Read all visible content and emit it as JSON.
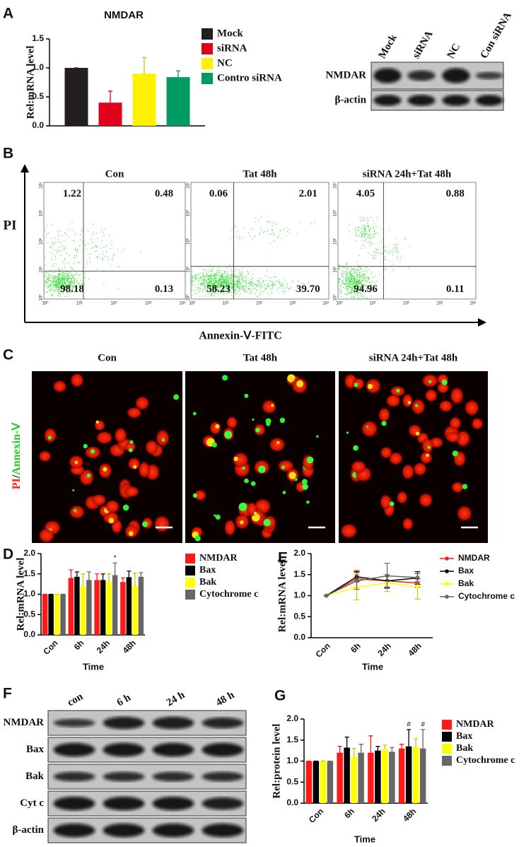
{
  "panel_labels": [
    "A",
    "B",
    "C",
    "D",
    "E",
    "F",
    "G"
  ],
  "chart_data": [
    {
      "type": "bar",
      "title": "NMDAR",
      "y_label": "Rel:mRNA level",
      "categories": [
        null
      ],
      "ylim": [
        0,
        1.5
      ],
      "yticks": [
        {
          "value": 0,
          "label": "0.0"
        },
        {
          "value": 0.5,
          "label": "0.5"
        },
        {
          "value": 1,
          "label": "1.0"
        },
        {
          "value": 1.5,
          "label": "1.5"
        }
      ],
      "series": [
        {
          "name": "Mock",
          "color": "#231f20",
          "values": [
            1.0
          ],
          "errors": [
            0
          ]
        },
        {
          "name": "siRNA",
          "color": "#e3001b",
          "values": [
            0.4
          ],
          "errors": [
            0.2
          ]
        },
        {
          "name": "NC",
          "color": "#fff200",
          "values": [
            0.9
          ],
          "errors": [
            0.28
          ]
        },
        {
          "name": "Contro siRNA",
          "color": "#009a63",
          "values": [
            0.84
          ],
          "errors": [
            0.11
          ]
        }
      ]
    },
    {
      "type": "bar",
      "y_label": "Rel:mRNA level",
      "x_label": "Time",
      "categories": [
        "Con",
        "6h",
        "24h",
        "48h"
      ],
      "ylim": [
        0,
        2
      ],
      "yticks": [
        {
          "value": 0,
          "label": "0.0"
        },
        {
          "value": 0.5,
          "label": "0.5"
        },
        {
          "value": 1,
          "label": "1.0"
        },
        {
          "value": 1.5,
          "label": "1.5"
        },
        {
          "value": 2,
          "label": "2.0"
        }
      ],
      "series": [
        {
          "name": "NMDAR",
          "color": "#ff1a1a",
          "values": [
            1,
            1.4,
            1.35,
            1.3
          ],
          "errors": [
            0,
            0.2,
            0.15,
            0.1
          ]
        },
        {
          "name": "Bax",
          "color": "#000000",
          "values": [
            1,
            1.43,
            1.35,
            1.42
          ],
          "errors": [
            0,
            0.12,
            0.15,
            0.15
          ]
        },
        {
          "name": "Bak",
          "color": "#ffff00",
          "values": [
            1,
            1.2,
            1.3,
            1.22
          ],
          "errors": [
            0,
            0.3,
            0.2,
            0.3
          ]
        },
        {
          "name": "Cytochrome c",
          "color": "#666666",
          "values": [
            1,
            1.35,
            1.47,
            1.43
          ],
          "errors": [
            0,
            0.2,
            0.3,
            0.1
          ],
          "markers": [
            null,
            null,
            "*",
            null
          ]
        }
      ]
    },
    {
      "type": "line",
      "y_label": "Rel:mRNA level",
      "x_label": "Time",
      "categories": [
        "Con",
        "6h",
        "24h",
        "48h"
      ],
      "ylim": [
        0,
        2
      ],
      "yticks": [
        {
          "value": 0,
          "label": "0.0"
        },
        {
          "value": 0.5,
          "label": "0.5"
        },
        {
          "value": 1,
          "label": "1.0"
        },
        {
          "value": 1.5,
          "label": "1.5"
        },
        {
          "value": 2,
          "label": "2.0"
        }
      ],
      "series": [
        {
          "name": "NMDAR",
          "color": "#ff1a1a",
          "values": [
            1,
            1.4,
            1.35,
            1.3
          ],
          "errors": [
            0,
            0.2,
            0.15,
            0.1
          ]
        },
        {
          "name": "Bax",
          "color": "#000000",
          "values": [
            1,
            1.45,
            1.35,
            1.42
          ],
          "errors": [
            0,
            0.12,
            0.15,
            0.15
          ]
        },
        {
          "name": "Bak",
          "color": "#ffff00",
          "values": [
            1,
            1.2,
            1.3,
            1.22
          ],
          "errors": [
            0,
            0.3,
            0.2,
            0.3
          ]
        },
        {
          "name": "Cytochrome c",
          "color": "#666666",
          "values": [
            1,
            1.35,
            1.47,
            1.43
          ],
          "errors": [
            0,
            0.2,
            0.3,
            0.1
          ]
        }
      ]
    },
    {
      "type": "bar",
      "y_label": "Rel:protein level",
      "x_label": "Time",
      "categories": [
        "Con",
        "6h",
        "24h",
        "48h"
      ],
      "ylim": [
        0,
        2
      ],
      "yticks": [
        {
          "value": 0,
          "label": "0.0"
        },
        {
          "value": 0.5,
          "label": "0.5"
        },
        {
          "value": 1,
          "label": "1.0"
        },
        {
          "value": 1.5,
          "label": "1.5"
        },
        {
          "value": 2,
          "label": "2.0"
        }
      ],
      "series": [
        {
          "name": "NMDAR",
          "color": "#ff1a1a",
          "values": [
            1,
            1.2,
            1.2,
            1.3
          ],
          "errors": [
            0,
            0.15,
            0.4,
            0.1
          ]
        },
        {
          "name": "Bax",
          "color": "#000000",
          "values": [
            1,
            1.32,
            1.25,
            1.35
          ],
          "errors": [
            0,
            0.25,
            0.1,
            0.4
          ],
          "markers": [
            null,
            null,
            null,
            "#"
          ]
        },
        {
          "name": "Bak",
          "color": "#ffff00",
          "values": [
            1,
            1.1,
            1.28,
            1.33
          ],
          "errors": [
            0,
            0.2,
            0.1,
            0.2
          ]
        },
        {
          "name": "Cytochrome c",
          "color": "#666666",
          "values": [
            1,
            1.2,
            1.22,
            1.3
          ],
          "errors": [
            0,
            0.2,
            0.1,
            0.45
          ],
          "markers": [
            null,
            null,
            null,
            "#"
          ]
        }
      ]
    }
  ],
  "blot_a": {
    "lanes": [
      "Mock",
      "siRNA",
      "NC",
      "Con siRNA"
    ],
    "rows": [
      "NMDAR",
      "β-actin"
    ]
  },
  "flow": {
    "y_label": "PI",
    "x_label": "Annexin-Ⅴ-FITC",
    "ticks": [
      "10⁰",
      "10¹",
      "10²",
      "10³",
      "10⁴"
    ],
    "plots": [
      {
        "title": "Con",
        "quadrants": [
          "1.22",
          "0.48",
          "98.18",
          "0.13"
        ]
      },
      {
        "title": "Tat 48h",
        "quadrants": [
          "0.06",
          "2.01",
          "58.23",
          "39.70"
        ]
      },
      {
        "title": "siRNA 24h+Tat 48h",
        "quadrants": [
          "4.05",
          "0.88",
          "94.96",
          "0.11"
        ]
      }
    ]
  },
  "microscopy": {
    "stain_labels": [
      "PI",
      "/",
      "Annexin-Ⅴ"
    ],
    "panels": [
      "Con",
      "Tat 48h",
      "siRNA 24h+Tat 48h"
    ]
  },
  "blot_f": {
    "lanes": [
      "con",
      "6 h",
      "24 h",
      "48 h"
    ],
    "rows": [
      "NMDAR",
      "Bax",
      "Bak",
      "Cyt c",
      "β-actin"
    ]
  }
}
